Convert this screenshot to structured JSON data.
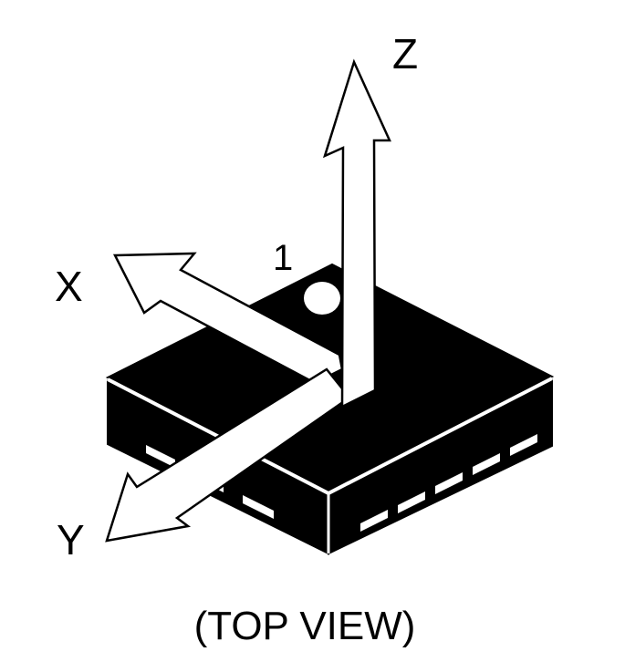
{
  "diagram": {
    "axes": {
      "x_label": "X",
      "y_label": "Y",
      "z_label": "Z"
    },
    "pin_one_label": "1",
    "caption": "(TOP VIEW)"
  },
  "colors": {
    "package_fill": "#000000",
    "arrow_fill": "#ffffff",
    "outline": "#000000",
    "pad_fill": "#ffffff",
    "background": "#ffffff"
  }
}
